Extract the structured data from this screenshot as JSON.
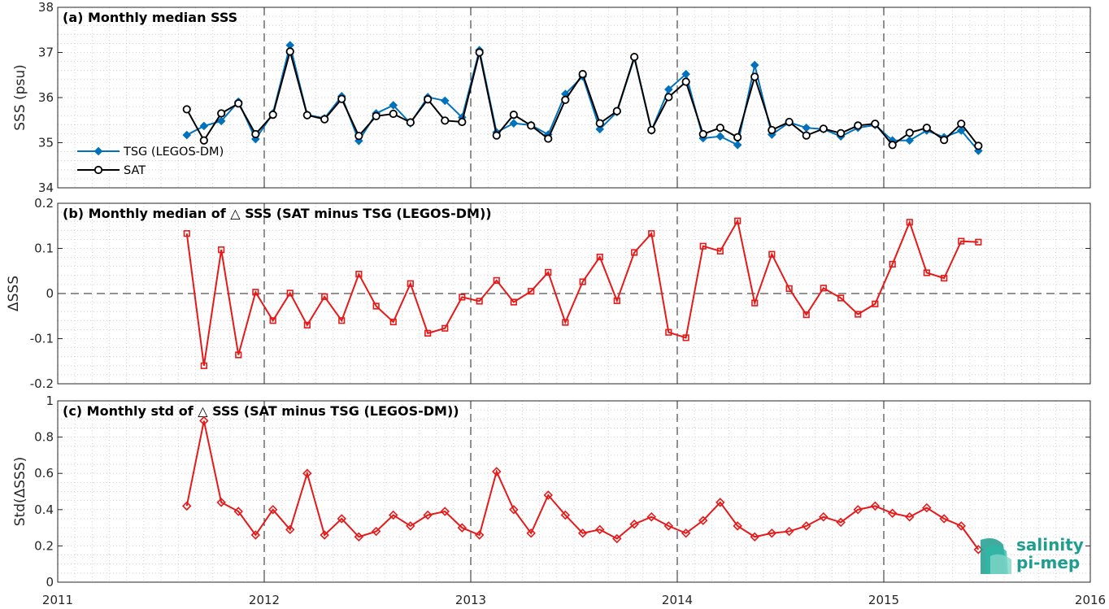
{
  "logo": {
    "line1": "salinity",
    "line2": "pi-mep"
  },
  "chart_data": [
    {
      "type": "line",
      "title": "(a) Monthly median SSS",
      "ylabel": "SSS (psu)",
      "xlim": [
        2011,
        2016
      ],
      "ylim": [
        34,
        38
      ],
      "yticks": [
        34,
        35,
        36,
        37,
        38
      ],
      "x_ticks": [
        2011,
        2012,
        2013,
        2014,
        2015,
        2016
      ],
      "x_tick_labels": [
        "2011",
        "2012",
        "2013",
        "2014",
        "2015",
        "2016"
      ],
      "grid": "dotted minor grid, dashed vertical lines at year boundaries",
      "legend_position": "bottom-left",
      "x": [
        2011.625,
        2011.708,
        2011.792,
        2011.875,
        2011.958,
        2012.042,
        2012.125,
        2012.208,
        2012.292,
        2012.375,
        2012.458,
        2012.542,
        2012.625,
        2012.708,
        2012.792,
        2012.875,
        2012.958,
        2013.042,
        2013.125,
        2013.208,
        2013.292,
        2013.375,
        2013.458,
        2013.542,
        2013.625,
        2013.708,
        2013.792,
        2013.875,
        2013.958,
        2014.042,
        2014.125,
        2014.208,
        2014.292,
        2014.375,
        2014.458,
        2014.542,
        2014.625,
        2014.708,
        2014.792,
        2014.875,
        2014.958,
        2015.042,
        2015.125,
        2015.208,
        2015.292,
        2015.375,
        2015.458
      ],
      "series": [
        {
          "name": "TSG (LEGOS-DM)",
          "color": "#0072bd",
          "marker": "diamond",
          "values": [
            35.17,
            35.37,
            35.48,
            35.91,
            35.08,
            35.65,
            37.16,
            35.62,
            35.54,
            36.03,
            35.04,
            35.65,
            35.83,
            35.43,
            36.01,
            35.93,
            35.56,
            37.05,
            35.23,
            35.43,
            35.39,
            35.18,
            36.08,
            36.47,
            35.3,
            35.68,
            36.88,
            35.27,
            36.18,
            36.52,
            35.1,
            35.14,
            34.95,
            36.72,
            35.18,
            35.45,
            35.33,
            35.3,
            35.14,
            35.33,
            35.39,
            35.05,
            35.05,
            35.27,
            35.12,
            35.27,
            34.82
          ]
        },
        {
          "name": "SAT",
          "color": "#000000",
          "marker": "circle",
          "values": [
            35.74,
            35.05,
            35.65,
            35.87,
            35.19,
            35.62,
            37.02,
            35.61,
            35.52,
            35.97,
            35.15,
            35.59,
            35.64,
            35.45,
            35.96,
            35.49,
            35.46,
            37.0,
            35.16,
            35.62,
            35.38,
            35.09,
            35.95,
            36.52,
            35.43,
            35.7,
            36.9,
            35.28,
            36.01,
            36.35,
            35.19,
            35.33,
            35.12,
            36.46,
            35.28,
            35.46,
            35.16,
            35.31,
            35.21,
            35.38,
            35.42,
            34.95,
            35.22,
            35.33,
            35.06,
            35.42,
            34.93
          ]
        }
      ]
    },
    {
      "type": "line",
      "title": "(b) Monthly median of △ SSS (SAT minus TSG (LEGOS-DM))",
      "ylabel": "ΔSSS",
      "xlim": [
        2011,
        2016
      ],
      "ylim": [
        -0.2,
        0.2
      ],
      "yticks": [
        -0.2,
        -0.1,
        0,
        0.1,
        0.2
      ],
      "y_tick_labels": [
        "-0.2",
        "-0.1",
        "0",
        "0.1",
        "0.2"
      ],
      "zero_line": "dashed",
      "x": [
        2011.625,
        2011.708,
        2011.792,
        2011.875,
        2011.958,
        2012.042,
        2012.125,
        2012.208,
        2012.292,
        2012.375,
        2012.458,
        2012.542,
        2012.625,
        2012.708,
        2012.792,
        2012.875,
        2012.958,
        2013.042,
        2013.125,
        2013.208,
        2013.292,
        2013.375,
        2013.458,
        2013.542,
        2013.625,
        2013.708,
        2013.792,
        2013.875,
        2013.958,
        2014.042,
        2014.125,
        2014.208,
        2014.292,
        2014.375,
        2014.458,
        2014.542,
        2014.625,
        2014.708,
        2014.792,
        2014.875,
        2014.958,
        2015.042,
        2015.125,
        2015.208,
        2015.292,
        2015.375,
        2015.458
      ],
      "series": [
        {
          "color": "#e61919",
          "marker": "square",
          "values": [
            0.133,
            -0.16,
            0.097,
            -0.136,
            0.003,
            -0.06,
            0.001,
            -0.07,
            -0.007,
            -0.06,
            0.043,
            -0.028,
            -0.063,
            0.022,
            -0.088,
            -0.077,
            -0.008,
            -0.017,
            0.029,
            -0.019,
            0.005,
            0.047,
            -0.064,
            0.026,
            0.081,
            -0.016,
            0.091,
            0.133,
            -0.086,
            -0.098,
            0.105,
            0.094,
            0.161,
            -0.021,
            0.087,
            0.011,
            -0.047,
            0.012,
            -0.01,
            -0.046,
            -0.023,
            0.065,
            0.158,
            0.046,
            0.034,
            0.116,
            0.114
          ]
        }
      ]
    },
    {
      "type": "line",
      "title": "(c) Monthly std of △ SSS (SAT minus TSG (LEGOS-DM))",
      "ylabel": "Std(ΔSSS)",
      "xlim": [
        2011,
        2016
      ],
      "ylim": [
        0,
        1
      ],
      "yticks": [
        0,
        0.2,
        0.4,
        0.6,
        0.8,
        1
      ],
      "y_tick_labels": [
        "0",
        "0.2",
        "0.4",
        "0.6",
        "0.8",
        "1"
      ],
      "x": [
        2011.625,
        2011.708,
        2011.792,
        2011.875,
        2011.958,
        2012.042,
        2012.125,
        2012.208,
        2012.292,
        2012.375,
        2012.458,
        2012.542,
        2012.625,
        2012.708,
        2012.792,
        2012.875,
        2012.958,
        2013.042,
        2013.125,
        2013.208,
        2013.292,
        2013.375,
        2013.458,
        2013.542,
        2013.625,
        2013.708,
        2013.792,
        2013.875,
        2013.958,
        2014.042,
        2014.125,
        2014.208,
        2014.292,
        2014.375,
        2014.458,
        2014.542,
        2014.625,
        2014.708,
        2014.792,
        2014.875,
        2014.958,
        2015.042,
        2015.125,
        2015.208,
        2015.292,
        2015.375,
        2015.458
      ],
      "series": [
        {
          "color": "#e61919",
          "marker": "diamond",
          "values": [
            0.42,
            0.89,
            0.44,
            0.39,
            0.26,
            0.4,
            0.29,
            0.6,
            0.26,
            0.35,
            0.25,
            0.28,
            0.37,
            0.31,
            0.37,
            0.39,
            0.3,
            0.26,
            0.61,
            0.4,
            0.27,
            0.48,
            0.37,
            0.27,
            0.29,
            0.24,
            0.32,
            0.36,
            0.31,
            0.27,
            0.34,
            0.44,
            0.31,
            0.25,
            0.27,
            0.28,
            0.31,
            0.36,
            0.33,
            0.4,
            0.42,
            0.38,
            0.36,
            0.41,
            0.35,
            0.31,
            0.18
          ]
        }
      ]
    }
  ]
}
